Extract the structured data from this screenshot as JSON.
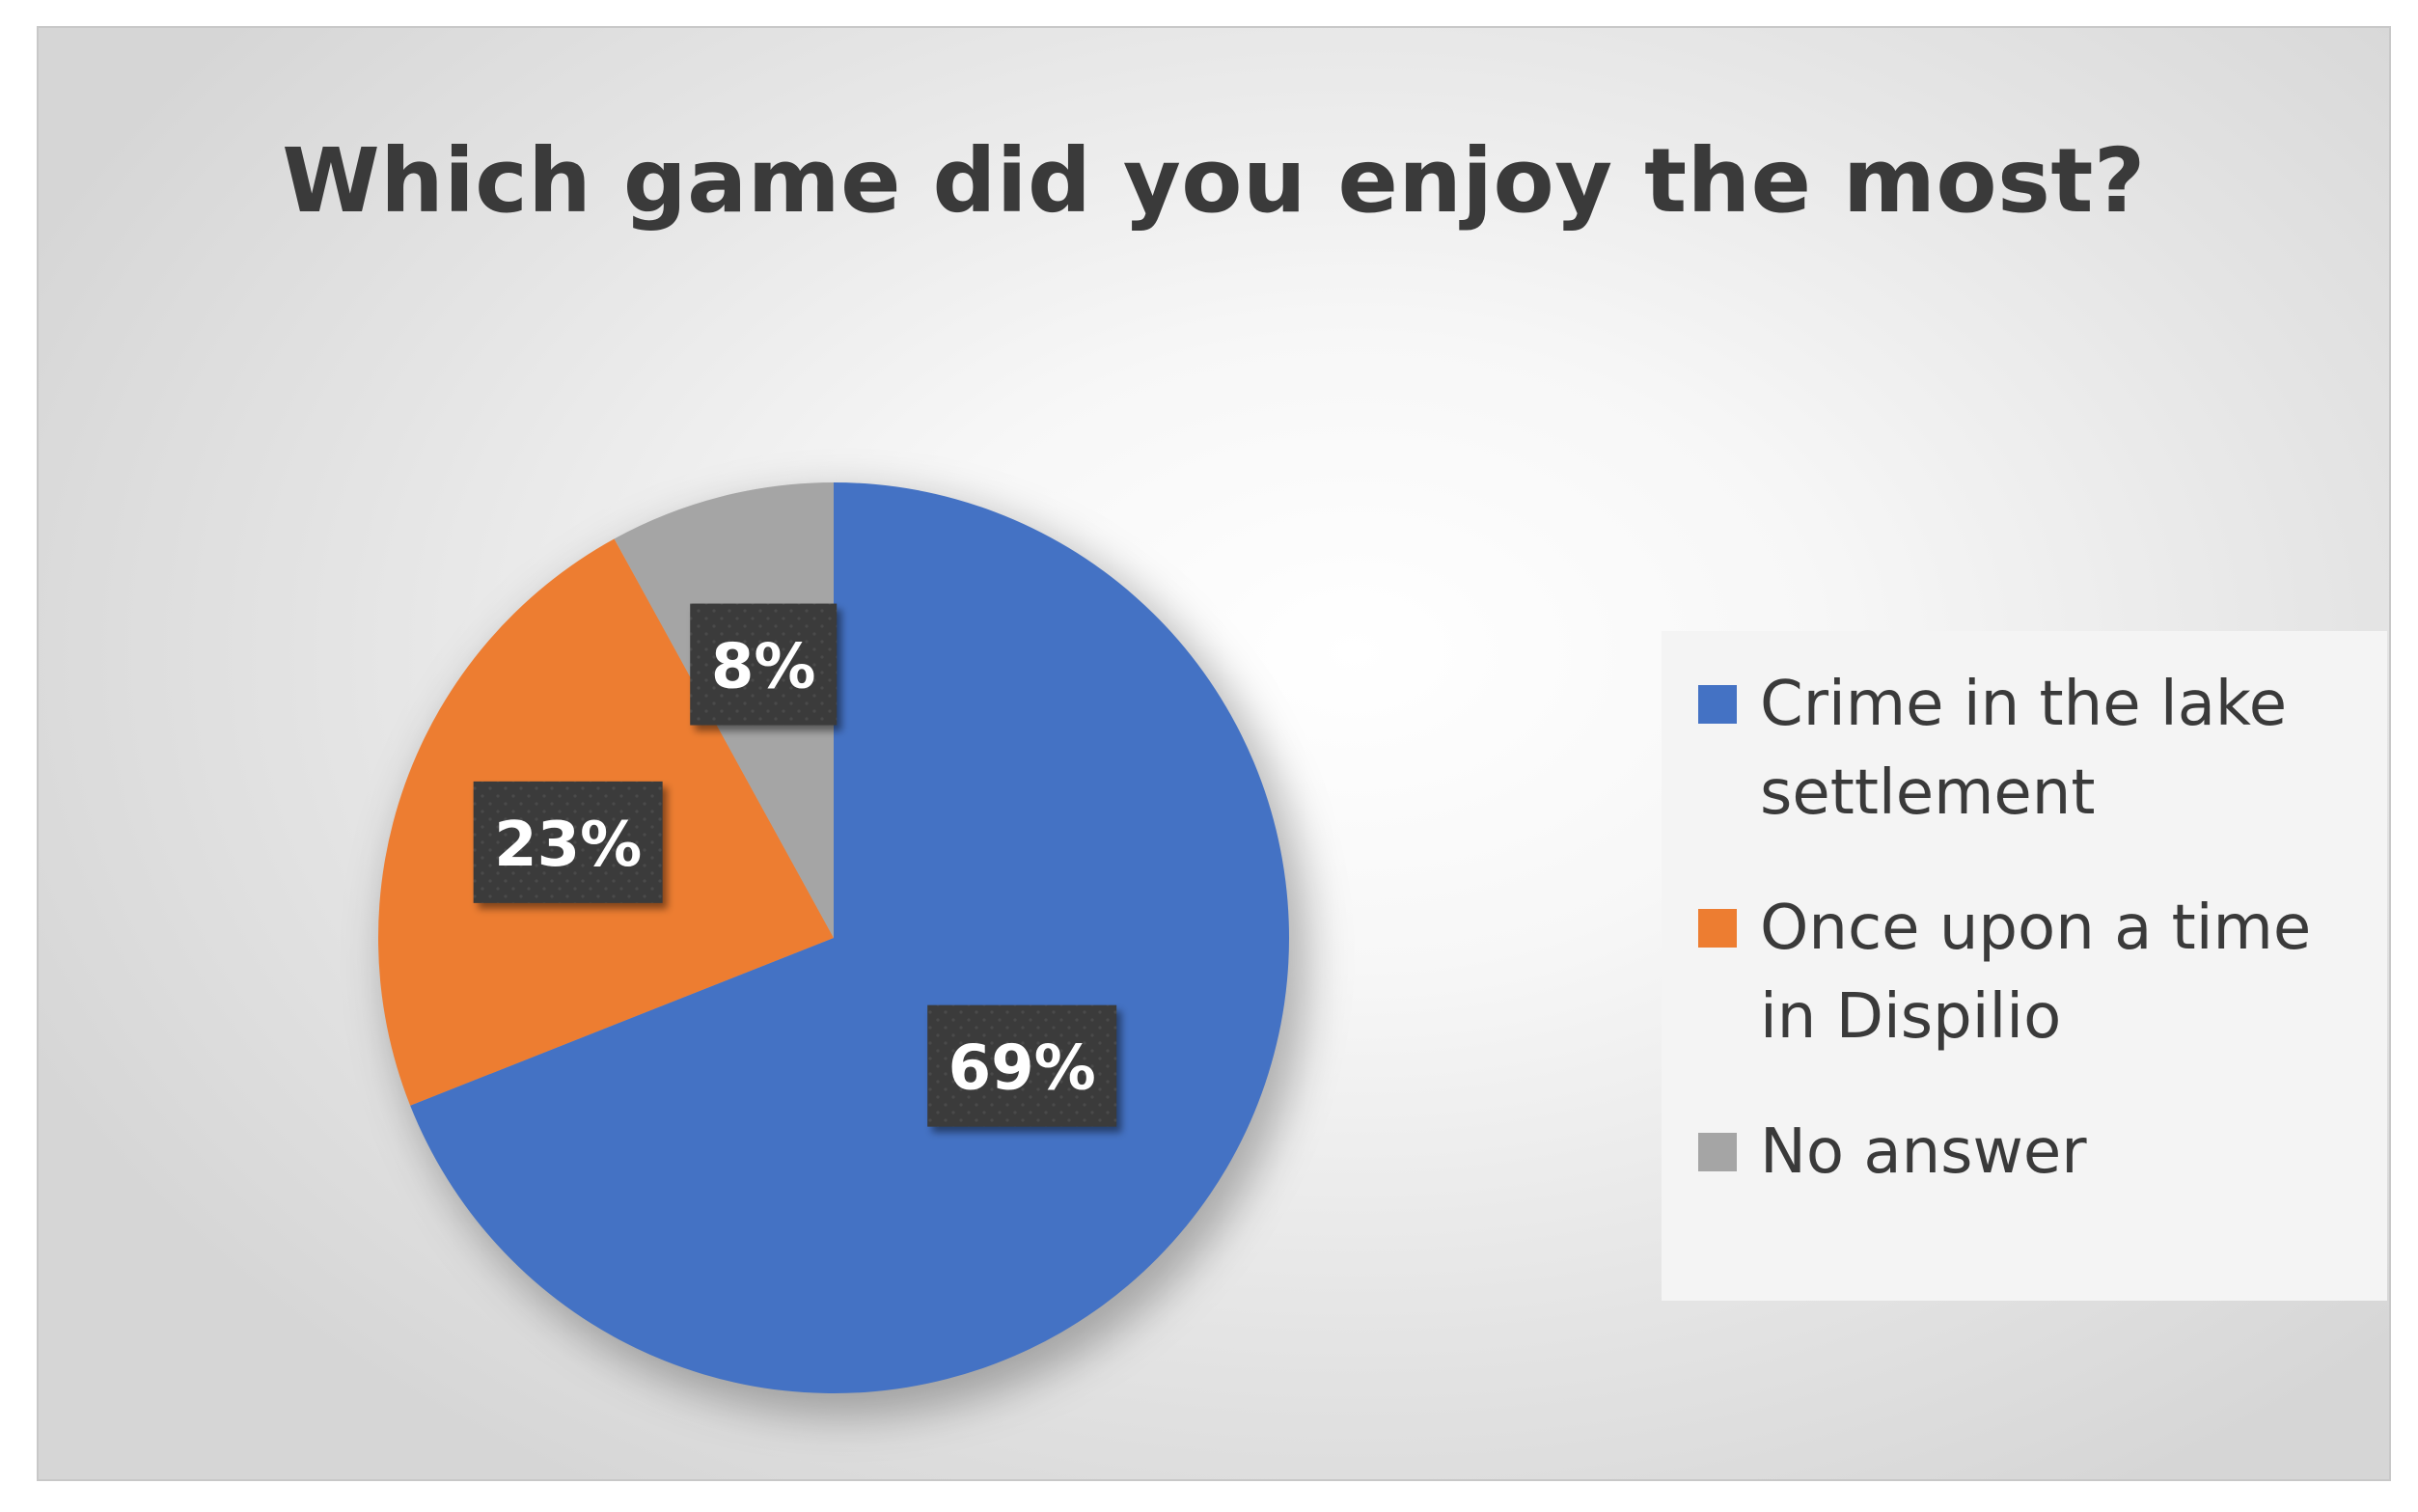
{
  "chart_data": {
    "type": "pie",
    "title": "Which game did you enjoy the most?",
    "slices": [
      {
        "label": "Crime in the lake settlement",
        "value": 69,
        "display": "69%",
        "color": "#4472c4"
      },
      {
        "label": "Once upon a time in Dispilio",
        "value": 23,
        "display": "23%",
        "color": "#ed7d31"
      },
      {
        "label": "No answer",
        "value": 8,
        "display": "8%",
        "color": "#a5a5a5"
      }
    ],
    "legend_position": "right",
    "data_label_style": "dark boxes with white bold percentage text"
  }
}
